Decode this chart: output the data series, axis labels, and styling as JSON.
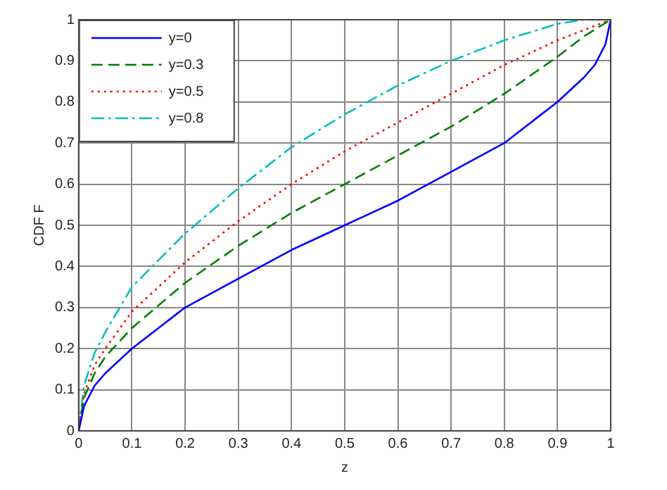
{
  "chart_data": {
    "type": "line",
    "xlabel": "z",
    "ylabel": "CDF F",
    "xlim": [
      0,
      1
    ],
    "ylim": [
      0,
      1
    ],
    "xticks": [
      0,
      0.1,
      0.2,
      0.3,
      0.4,
      0.5,
      0.6,
      0.7,
      0.8,
      0.9,
      1
    ],
    "yticks": [
      0,
      0.1,
      0.2,
      0.3,
      0.4,
      0.5,
      0.6,
      0.7,
      0.8,
      0.9,
      1
    ],
    "grid": true,
    "legend": "top left",
    "marker": "none",
    "series": [
      {
        "name": "y=0",
        "color": "#0000ff",
        "line_style": "solid",
        "x": [
          0,
          0.01,
          0.03,
          0.05,
          0.1,
          0.15,
          0.2,
          0.3,
          0.4,
          0.5,
          0.6,
          0.7,
          0.8,
          0.85,
          0.9,
          0.95,
          0.97,
          0.99,
          1
        ],
        "values": [
          0,
          0.06,
          0.11,
          0.14,
          0.2,
          0.25,
          0.3,
          0.37,
          0.44,
          0.5,
          0.56,
          0.63,
          0.7,
          0.75,
          0.8,
          0.86,
          0.89,
          0.94,
          1
        ]
      },
      {
        "name": "y=0.3",
        "color": "#007f00",
        "line_style": "dashed",
        "x": [
          0,
          0.01,
          0.03,
          0.05,
          0.1,
          0.2,
          0.3,
          0.4,
          0.5,
          0.6,
          0.7,
          0.8,
          0.9,
          0.95,
          1
        ],
        "values": [
          0,
          0.08,
          0.14,
          0.18,
          0.25,
          0.36,
          0.45,
          0.53,
          0.6,
          0.67,
          0.74,
          0.82,
          0.91,
          0.96,
          1
        ]
      },
      {
        "name": "y=0.5",
        "color": "#ff0000",
        "line_style": "dotted",
        "x": [
          0,
          0.01,
          0.03,
          0.05,
          0.1,
          0.2,
          0.3,
          0.4,
          0.5,
          0.6,
          0.7,
          0.8,
          0.9,
          1
        ],
        "values": [
          0,
          0.09,
          0.16,
          0.2,
          0.29,
          0.41,
          0.51,
          0.6,
          0.68,
          0.75,
          0.82,
          0.89,
          0.95,
          1
        ]
      },
      {
        "name": "y=0.8",
        "color": "#00bfbf",
        "line_style": "dashdot",
        "x": [
          0,
          0.01,
          0.03,
          0.05,
          0.1,
          0.2,
          0.3,
          0.4,
          0.5,
          0.6,
          0.7,
          0.8,
          0.9,
          0.95,
          1
        ],
        "values": [
          0,
          0.11,
          0.19,
          0.24,
          0.35,
          0.48,
          0.59,
          0.69,
          0.77,
          0.84,
          0.9,
          0.95,
          0.99,
          1,
          1
        ]
      }
    ]
  }
}
